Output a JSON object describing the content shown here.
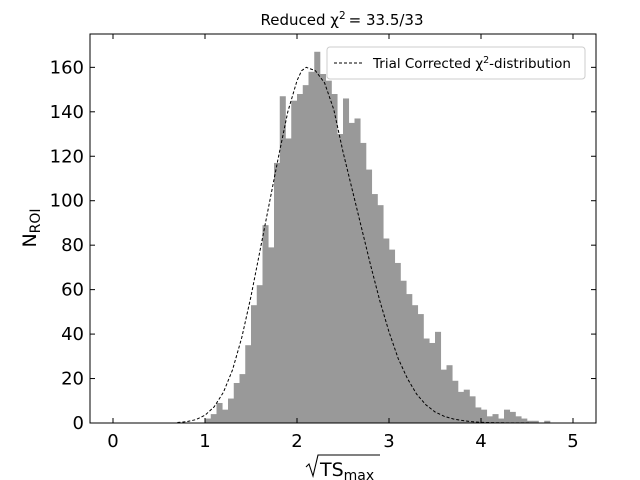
{
  "chart_data": {
    "type": "bar",
    "title": {
      "prefix": "Reduced ",
      "chi": "χ",
      "exp": "2",
      "value": "=  33.5/33"
    },
    "xlabel": {
      "main": "TS",
      "sub": "max"
    },
    "ylabel": {
      "main": "N",
      "sub": "ROI"
    },
    "xlim": [
      -0.25,
      5.25
    ],
    "ylim": [
      0,
      175
    ],
    "xticks": [
      0,
      1,
      2,
      3,
      4,
      5
    ],
    "yticks": [
      0,
      20,
      40,
      60,
      80,
      100,
      120,
      140,
      160
    ],
    "grid": false,
    "ticks_direction": "in",
    "ticks_on_all_sides": true,
    "legend": {
      "placement": "top-right",
      "label_main": "Trial Corrected χ",
      "label_exp": "2",
      "label_tail": "-distribution"
    },
    "histogram": {
      "color": "#999999",
      "bin_width": 0.0625,
      "bin_start": 1.0,
      "counts": [
        2,
        4,
        9,
        6,
        11,
        18,
        22,
        35,
        53,
        62,
        89,
        79,
        117,
        147,
        128,
        145,
        148,
        152,
        158,
        167,
        157,
        154,
        148,
        130,
        146,
        135,
        137,
        126,
        114,
        103,
        98,
        83,
        78,
        72,
        64,
        58,
        53,
        49,
        38,
        36,
        41,
        24,
        26,
        19,
        14,
        15,
        12,
        7,
        6,
        3,
        4,
        2,
        6,
        5,
        3,
        2,
        1,
        1,
        0,
        1
      ]
    },
    "series": [
      {
        "type": "line",
        "style": "dashed",
        "color": "#000000",
        "x": [
          0.7,
          0.8,
          0.9,
          1.0,
          1.1,
          1.2,
          1.3,
          1.4,
          1.5,
          1.6,
          1.7,
          1.8,
          1.9,
          2.0,
          2.05,
          2.1,
          2.2,
          2.3,
          2.4,
          2.5,
          2.6,
          2.7,
          2.8,
          2.9,
          3.0,
          3.1,
          3.2,
          3.3,
          3.4,
          3.5,
          3.6,
          3.7,
          3.8,
          3.9,
          4.0,
          4.2,
          4.4,
          4.6,
          4.8,
          5.0
        ],
        "y": [
          0.2,
          0.6,
          1.5,
          3.5,
          7.3,
          13.8,
          24,
          38.5,
          57,
          78,
          99,
          120,
          140,
          154,
          158.5,
          160,
          158.5,
          153,
          141,
          122,
          105,
          88,
          71,
          55,
          41,
          29,
          20,
          13,
          8.2,
          5,
          3,
          1.8,
          1.1,
          0.6,
          0.3,
          0.1,
          0.05,
          0.02,
          0.01,
          0
        ]
      }
    ]
  }
}
